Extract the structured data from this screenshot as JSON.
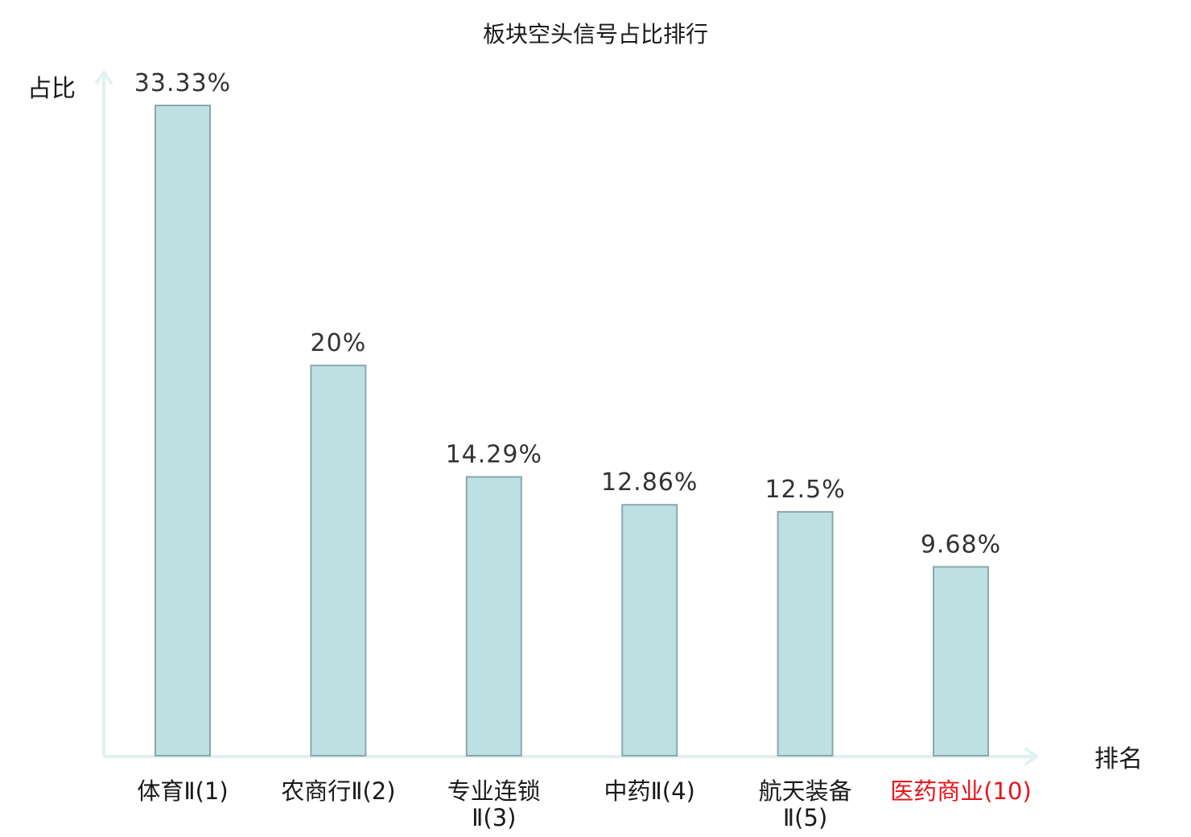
{
  "colors": {
    "bar_fill": "#bde0e3",
    "bar_stroke": "#8aa8ab",
    "axis": "#dff2ef",
    "label_normal": "#1a1a1a",
    "label_highlight": "#e8141c",
    "value_label": "#333333"
  },
  "chart_data": {
    "type": "bar",
    "title": "板块空头信号占比排行",
    "ylabel": "占比",
    "xlabel": "排名",
    "categories": [
      [
        "体育Ⅱ(1)"
      ],
      [
        "农商行Ⅱ(2)"
      ],
      [
        "专业连锁",
        "Ⅱ(3)"
      ],
      [
        "中药Ⅱ(4)"
      ],
      [
        "航天装备",
        "Ⅱ(5)"
      ],
      [
        "医药商业(10)"
      ]
    ],
    "values": [
      33.33,
      20,
      14.29,
      12.86,
      12.5,
      9.68
    ],
    "value_labels": [
      "33.33%",
      "20%",
      "14.29%",
      "12.86%",
      "12.5%",
      "9.68%"
    ],
    "highlight": [
      false,
      false,
      false,
      false,
      false,
      true
    ],
    "ylim": [
      0,
      35
    ],
    "grid": false
  }
}
